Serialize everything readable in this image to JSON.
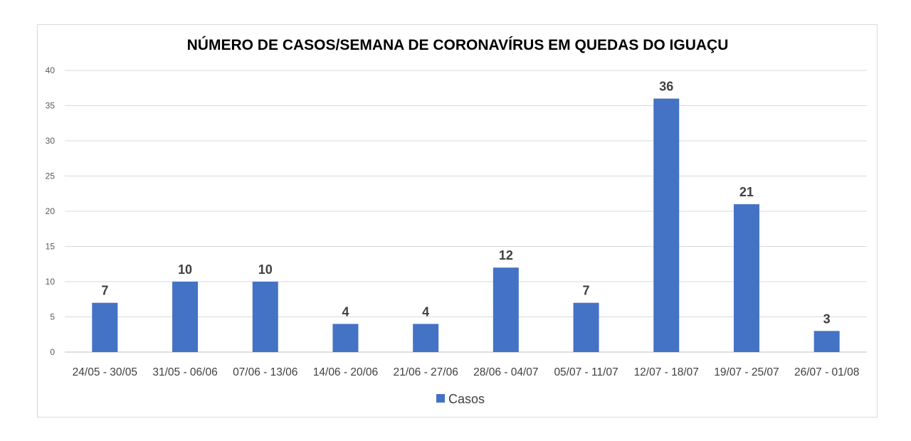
{
  "chart_data": {
    "type": "bar",
    "title": "NÚMERO DE CASOS/SEMANA DE CORONAVÍRUS EM QUEDAS DO IGUAÇU",
    "xlabel": "",
    "ylabel": "",
    "ylim": [
      0,
      40
    ],
    "yticks": [
      0,
      5,
      10,
      15,
      20,
      25,
      30,
      35,
      40
    ],
    "categories": [
      "24/05 - 30/05",
      "31/05 - 06/06",
      "07/06 - 13/06",
      "14/06 - 20/06",
      "21/06 - 27/06",
      "28/06 - 04/07",
      "05/07 - 11/07",
      "12/07 - 18/07",
      "19/07 - 25/07",
      "26/07 - 01/08"
    ],
    "series": [
      {
        "name": "Casos",
        "values": [
          7,
          10,
          10,
          4,
          4,
          12,
          7,
          36,
          21,
          3
        ],
        "color": "#4472c4"
      }
    ],
    "grid": true,
    "data_labels": true,
    "legend": "bottom"
  }
}
